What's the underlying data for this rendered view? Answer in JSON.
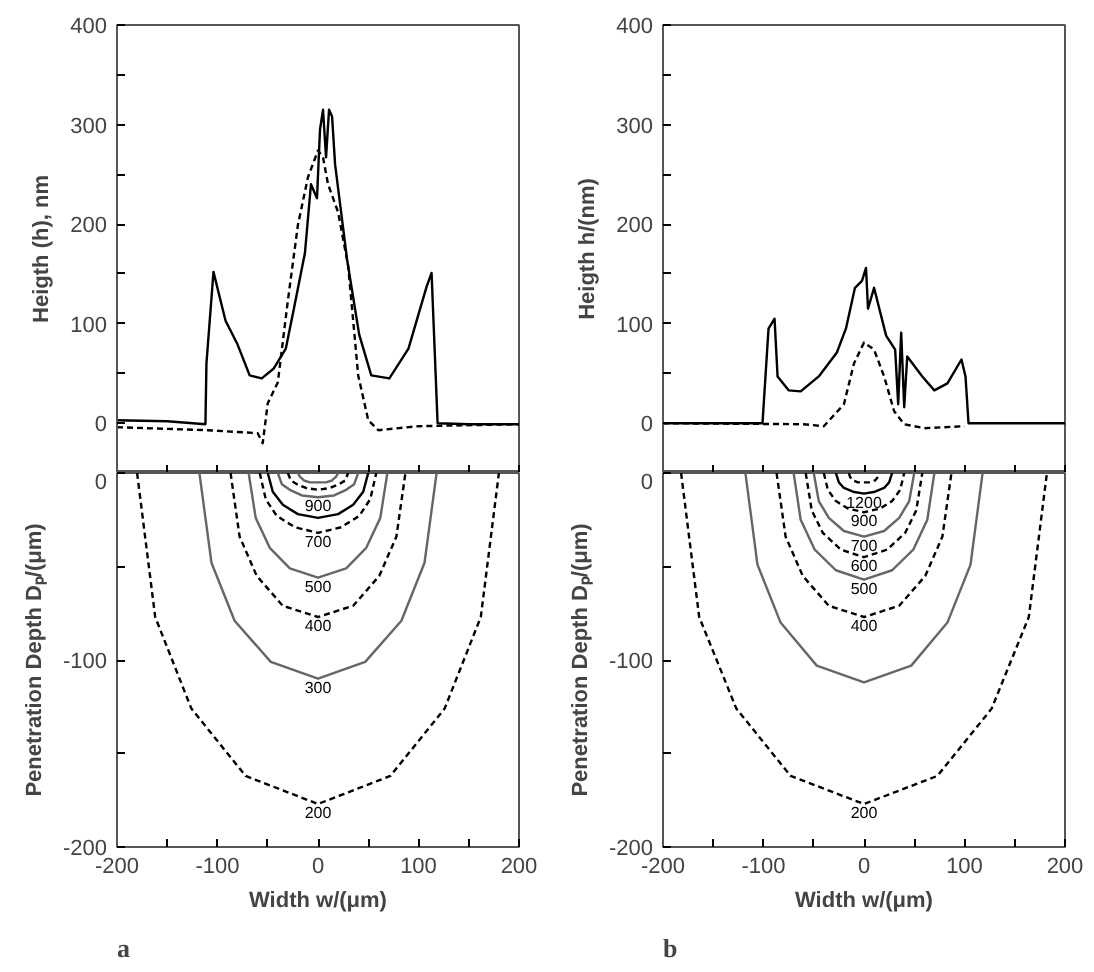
{
  "chart_data": [
    {
      "type": "line",
      "ylabel": "Heigth (h), nm",
      "xlim": [
        -200,
        200
      ],
      "ylim": [
        -50,
        400
      ],
      "tick_labels": "y",
      "xticks": [
        {
          "value": -200,
          "label": null
        },
        {
          "value": -150,
          "label": null
        },
        {
          "value": -100,
          "label": null
        },
        {
          "value": -50,
          "label": null
        },
        {
          "value": 0,
          "label": null
        },
        {
          "value": 50,
          "label": null
        },
        {
          "value": 100,
          "label": null
        },
        {
          "value": 150,
          "label": null
        },
        {
          "value": 200,
          "label": null
        }
      ],
      "yticks": [
        0,
        {
          "value": 50,
          "label": null
        },
        100,
        {
          "value": 150,
          "label": null
        },
        200,
        {
          "value": 250,
          "label": null
        },
        300,
        {
          "value": 350,
          "label": null
        },
        400
      ],
      "series": [
        {
          "color": "#000000",
          "line_style": "solid",
          "x": [
            -200,
            -150,
            -112,
            -111,
            -104,
            -92,
            -80,
            -68,
            -56,
            -44,
            -32,
            -25,
            -13,
            -7,
            -1,
            2,
            5,
            8,
            11,
            14,
            17,
            29,
            41,
            53,
            71,
            90,
            108,
            113,
            119,
            150,
            200
          ],
          "values": [
            3,
            2,
            -1,
            60,
            152,
            103,
            79,
            48,
            45,
            55,
            75,
            110,
            171,
            240,
            226,
            295,
            315,
            267,
            315,
            308,
            260,
            164,
            89,
            48,
            45,
            75,
            137,
            151,
            0,
            -1,
            -1
          ]
        },
        {
          "color": "#000000",
          "line_style": "dashed",
          "x": [
            -200,
            -110,
            -60,
            -55,
            -50,
            -40,
            -30,
            -20,
            -10,
            0,
            5,
            10,
            20,
            30,
            40,
            50,
            60,
            100,
            200
          ],
          "values": [
            -4,
            -7,
            -10,
            -20,
            20,
            41,
            123,
            199,
            247,
            274,
            267,
            240,
            212,
            158,
            48,
            3,
            -7,
            -3,
            -1
          ]
        }
      ]
    },
    {
      "type": "line",
      "ylabel": "Heigth h/(nm)",
      "xlim": [
        -200,
        200
      ],
      "ylim": [
        -50,
        400
      ],
      "tick_labels": "y",
      "xticks": [
        {
          "value": -200,
          "label": null
        },
        {
          "value": -150,
          "label": null
        },
        {
          "value": -100,
          "label": null
        },
        {
          "value": -50,
          "label": null
        },
        {
          "value": 0,
          "label": null
        },
        {
          "value": 50,
          "label": null
        },
        {
          "value": 100,
          "label": null
        },
        {
          "value": 150,
          "label": null
        },
        {
          "value": 200,
          "label": null
        }
      ],
      "yticks": [
        0,
        {
          "value": 50,
          "label": null
        },
        100,
        {
          "value": 150,
          "label": null
        },
        200,
        {
          "value": 250,
          "label": null
        },
        300,
        {
          "value": 350,
          "label": null
        },
        400
      ],
      "series": [
        {
          "color": "#000000",
          "line_style": "solid",
          "x": [
            -200,
            -150,
            -101,
            -95,
            -89,
            -86,
            -75,
            -63,
            -45,
            -27,
            -18,
            -9,
            -2,
            2,
            4,
            10,
            22,
            31,
            34,
            37,
            40,
            43,
            58,
            70,
            83,
            97,
            101,
            104,
            150,
            200
          ],
          "values": [
            0,
            0,
            0,
            95,
            105,
            47,
            33,
            32,
            47,
            71,
            95,
            136,
            143,
            156,
            115,
            136,
            88,
            74,
            19,
            91,
            16,
            67,
            47,
            33,
            40,
            64,
            47,
            0,
            0,
            0
          ]
        },
        {
          "color": "#000000",
          "line_style": "dashed",
          "x": [
            -200,
            -60,
            -40,
            -20,
            -10,
            0,
            10,
            20,
            30,
            40,
            60,
            100
          ],
          "values": [
            0,
            -1,
            -3,
            19,
            60,
            81,
            74,
            47,
            12,
            -1,
            -5,
            -3
          ]
        }
      ]
    },
    {
      "type": "line",
      "xlabel": "Width w/(μm)",
      "ylabel": "Penetration Depth Dₚ/(μm)",
      "xlim": [
        -200,
        200
      ],
      "ylim": [
        -200,
        0
      ],
      "annotations": [
        "a"
      ],
      "xticks": [
        -200,
        {
          "value": -150,
          "label": null
        },
        -100,
        {
          "value": -50,
          "label": null
        },
        0,
        {
          "value": 50,
          "label": null
        },
        100,
        {
          "value": 150,
          "label": null
        },
        200
      ],
      "yticks": [
        -200,
        {
          "value": -150,
          "label": null
        },
        -100,
        {
          "value": -50,
          "label": null
        },
        0
      ],
      "series": [
        {
          "name": "200",
          "color": "#000000",
          "line_style": "dashed",
          "x": [
            -180,
            -162,
            -126,
            -72,
            0,
            72,
            126,
            162,
            180
          ],
          "values": [
            0,
            -77,
            -126,
            -162,
            -177,
            -162,
            -126,
            -77,
            0
          ]
        },
        {
          "name": "300",
          "color": "#666666",
          "line_style": "solid",
          "x": [
            -118,
            -106,
            -83,
            -47,
            0,
            47,
            83,
            106,
            118
          ],
          "values": [
            0,
            -48,
            -79,
            -101,
            -110,
            -101,
            -79,
            -48,
            0
          ]
        },
        {
          "name": "400",
          "color": "#000000",
          "line_style": "dashed",
          "x": [
            -87,
            -78,
            -61,
            -35,
            0,
            35,
            61,
            78,
            87
          ],
          "values": [
            0,
            -34,
            -55,
            -71,
            -77,
            -71,
            -55,
            -34,
            0
          ]
        },
        {
          "name": "500",
          "color": "#666666",
          "line_style": "solid",
          "x": [
            -69,
            -62,
            -48,
            -28,
            0,
            28,
            48,
            62,
            69
          ],
          "values": [
            0,
            -24,
            -40,
            -51,
            -56,
            -51,
            -40,
            -24,
            0
          ]
        },
        {
          "name": "700",
          "color": "#000000",
          "line_style": "dashed",
          "x": [
            -58,
            -52,
            -41,
            -23,
            0,
            23,
            41,
            52,
            58
          ],
          "values": [
            0,
            -14,
            -23,
            -29,
            -32,
            -29,
            -23,
            -14,
            0
          ]
        },
        {
          "color": "#000000",
          "line_style": "solid",
          "x": [
            -50,
            -45,
            -35,
            -20,
            0,
            20,
            35,
            45,
            50
          ],
          "values": [
            0,
            -10,
            -17,
            -22,
            -24,
            -22,
            -17,
            -10,
            0
          ]
        },
        {
          "name": "900",
          "color": "#666666",
          "line_style": "solid",
          "x": [
            -40,
            -36,
            -28,
            -16,
            0,
            16,
            28,
            36,
            40
          ],
          "values": [
            0,
            -6,
            -9,
            -12,
            -13,
            -12,
            -9,
            -6,
            0
          ]
        },
        {
          "color": "#000000",
          "line_style": "dashed",
          "x": [
            -30,
            -27,
            -21,
            -12,
            0,
            12,
            21,
            27,
            30
          ],
          "values": [
            0,
            -4,
            -6,
            -8,
            -9,
            -8,
            -6,
            -4,
            0
          ]
        },
        {
          "color": "#666666",
          "line_style": "solid",
          "x": [
            -20,
            -18,
            -14,
            -8,
            0,
            8,
            14,
            18,
            20
          ],
          "values": [
            0,
            -2,
            -4,
            -5,
            -5,
            -5,
            -4,
            -2,
            0
          ]
        }
      ]
    },
    {
      "type": "line",
      "xlabel": "Width w/(μm)",
      "ylabel": "Penetration Depth Dₚ/(μm)",
      "xlim": [
        -200,
        200
      ],
      "ylim": [
        -200,
        0
      ],
      "annotations": [
        "b"
      ],
      "xticks": [
        -200,
        {
          "value": -150,
          "label": null
        },
        -100,
        {
          "value": -50,
          "label": null
        },
        0,
        {
          "value": 50,
          "label": null
        },
        100,
        {
          "value": 150,
          "label": null
        },
        200
      ],
      "yticks": [
        -200,
        {
          "value": -150,
          "label": null
        },
        -100,
        {
          "value": -50,
          "label": null
        },
        0
      ],
      "series": [
        {
          "name": "200",
          "color": "#000000",
          "line_style": "dashed",
          "x": [
            -182,
            -164,
            -127,
            -73,
            0,
            73,
            127,
            164,
            182
          ],
          "values": [
            0,
            -77,
            -126,
            -162,
            -177,
            -162,
            -126,
            -77,
            0
          ]
        },
        {
          "color": "#666666",
          "line_style": "solid",
          "x": [
            -118,
            -106,
            -83,
            -47,
            0,
            47,
            83,
            106,
            118
          ],
          "values": [
            0,
            -49,
            -80,
            -103,
            -112,
            -103,
            -80,
            -49,
            0
          ]
        },
        {
          "name": "400",
          "color": "#000000",
          "line_style": "dashed",
          "x": [
            -87,
            -78,
            -61,
            -35,
            0,
            35,
            61,
            78,
            87
          ],
          "values": [
            0,
            -34,
            -55,
            -71,
            -77,
            -71,
            -55,
            -34,
            0
          ]
        },
        {
          "name": "500",
          "color": "#666666",
          "line_style": "solid",
          "x": [
            -70,
            -63,
            -49,
            -28,
            0,
            28,
            49,
            63,
            70
          ],
          "values": [
            0,
            -25,
            -41,
            -52,
            -57,
            -52,
            -41,
            -25,
            0
          ]
        },
        {
          "name": "600",
          "color": "#000000",
          "line_style": "dashed",
          "x": [
            -58,
            -52,
            -41,
            -23,
            0,
            23,
            41,
            52,
            58
          ],
          "values": [
            0,
            -20,
            -32,
            -41,
            -45,
            -41,
            -32,
            -20,
            0
          ]
        },
        {
          "name": "700",
          "color": "#666666",
          "line_style": "solid",
          "x": [
            -50,
            -45,
            -35,
            -20,
            0,
            20,
            35,
            45,
            50
          ],
          "values": [
            0,
            -15,
            -24,
            -31,
            -34,
            -31,
            -24,
            -15,
            0
          ]
        },
        {
          "name": "900",
          "color": "#000000",
          "line_style": "dashed",
          "x": [
            -40,
            -36,
            -28,
            -16,
            0,
            16,
            28,
            36,
            40
          ],
          "values": [
            0,
            -9,
            -15,
            -19,
            -21,
            -19,
            -15,
            -9,
            0
          ]
        },
        {
          "name": "1200",
          "color": "#000000",
          "line_style": "solid",
          "x": [
            -28,
            -25,
            -20,
            -11,
            0,
            11,
            20,
            25,
            28
          ],
          "values": [
            0,
            -5,
            -8,
            -10,
            -11,
            -10,
            -8,
            -5,
            0
          ]
        },
        {
          "color": "#000000",
          "line_style": "dashed",
          "x": [
            -15,
            -14,
            -11,
            -6,
            0,
            6,
            11,
            14,
            15
          ],
          "values": [
            0,
            -2,
            -4,
            -5,
            -5,
            -5,
            -4,
            -2,
            0
          ]
        }
      ]
    }
  ]
}
